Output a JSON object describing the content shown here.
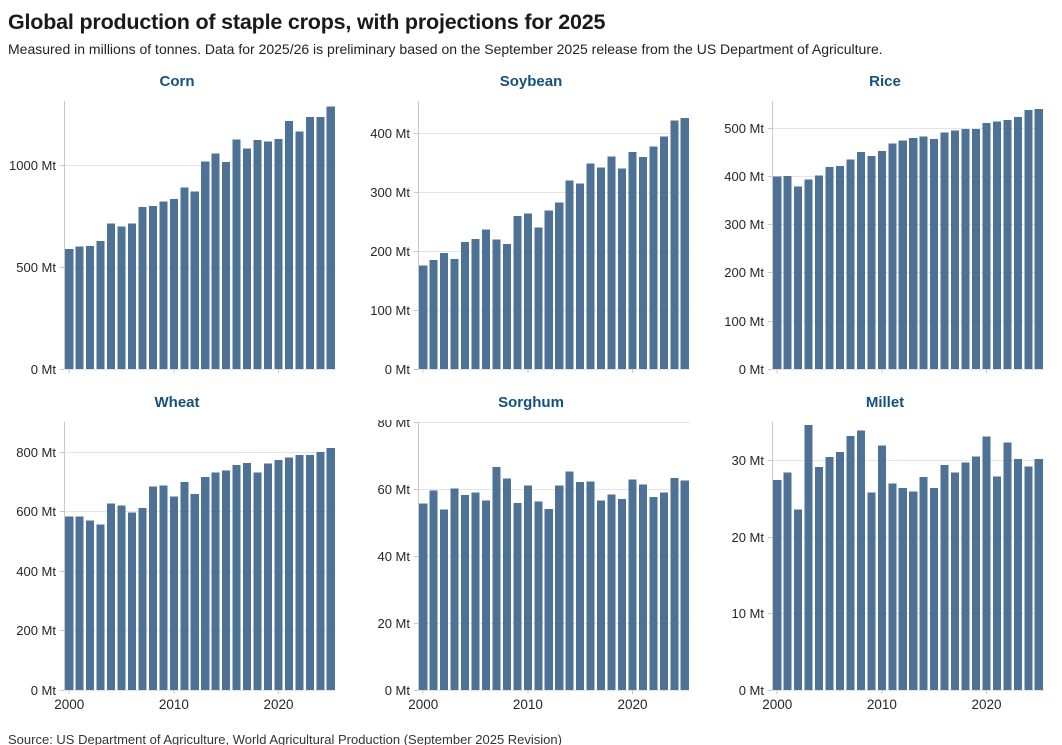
{
  "header": {
    "title": "Global production of staple crops, with projections for 2025",
    "subtitle": "Measured in millions of tonnes. Data for 2025/26 is preliminary based on the September 2025 release from the US Department of Agriculture."
  },
  "footer": {
    "source": "Source: US Department of Agriculture, World Agricultural Production (September 2025 Revision)"
  },
  "colors": {
    "bar": "#4d7296",
    "subplot_title": "#15517f",
    "grid": "#e4e4e4",
    "axis": "#c9c9c9",
    "tick_text": "#262626",
    "title_text": "#1a1a1a",
    "subtitle_text": "#222222",
    "source_text": "#333333",
    "background": "#ffffff"
  },
  "chart_data": [
    {
      "type": "bar",
      "title": "Corn",
      "unit": "Mt",
      "categories": [
        2000,
        2001,
        2002,
        2003,
        2004,
        2005,
        2006,
        2007,
        2008,
        2009,
        2010,
        2011,
        2012,
        2013,
        2014,
        2015,
        2016,
        2017,
        2018,
        2019,
        2020,
        2021,
        2022,
        2023,
        2024,
        2025
      ],
      "values": [
        590,
        601,
        604,
        627,
        715,
        699,
        713,
        795,
        800,
        821,
        835,
        890,
        871,
        1018,
        1057,
        1015,
        1127,
        1082,
        1124,
        1117,
        1129,
        1218,
        1166,
        1236,
        1237,
        1287
      ],
      "ylim": [
        0,
        1315
      ],
      "y_ticks": [
        0,
        500,
        1000
      ],
      "x_ticks": [
        2000,
        2010,
        2020
      ],
      "show_x_tick_labels": false,
      "grid": true,
      "legend": "none"
    },
    {
      "type": "bar",
      "title": "Soybean",
      "unit": "Mt",
      "categories": [
        2000,
        2001,
        2002,
        2003,
        2004,
        2005,
        2006,
        2007,
        2008,
        2009,
        2010,
        2011,
        2012,
        2013,
        2014,
        2015,
        2016,
        2017,
        2018,
        2019,
        2020,
        2021,
        2022,
        2023,
        2024,
        2025
      ],
      "values": [
        176,
        185,
        197,
        187,
        216,
        221,
        237,
        220,
        212,
        260,
        264,
        240,
        269,
        283,
        320,
        315,
        349,
        342,
        361,
        340,
        368,
        360,
        378,
        395,
        422,
        426
      ],
      "ylim": [
        0,
        455
      ],
      "y_ticks": [
        0,
        100,
        200,
        300,
        400
      ],
      "x_ticks": [
        2000,
        2010,
        2020
      ],
      "show_x_tick_labels": false,
      "grid": true,
      "legend": "none"
    },
    {
      "type": "bar",
      "title": "Rice",
      "unit": "Mt",
      "categories": [
        2000,
        2001,
        2002,
        2003,
        2004,
        2005,
        2006,
        2007,
        2008,
        2009,
        2010,
        2011,
        2012,
        2013,
        2014,
        2015,
        2016,
        2017,
        2018,
        2019,
        2020,
        2021,
        2022,
        2023,
        2024,
        2025
      ],
      "values": [
        399,
        400,
        378,
        392,
        401,
        418,
        420,
        434,
        449,
        441,
        451,
        467,
        473,
        478,
        481,
        476,
        490,
        494,
        497,
        497,
        509,
        513,
        516,
        522,
        536,
        538
      ],
      "ylim": [
        0,
        555
      ],
      "y_ticks": [
        0,
        100,
        200,
        300,
        400,
        500
      ],
      "x_ticks": [
        2000,
        2010,
        2020
      ],
      "show_x_tick_labels": false,
      "grid": true,
      "legend": "none"
    },
    {
      "type": "bar",
      "title": "Wheat",
      "unit": "Mt",
      "categories": [
        2000,
        2001,
        2002,
        2003,
        2004,
        2005,
        2006,
        2007,
        2008,
        2009,
        2010,
        2011,
        2012,
        2013,
        2014,
        2015,
        2016,
        2017,
        2018,
        2019,
        2020,
        2021,
        2022,
        2023,
        2024,
        2025
      ],
      "values": [
        583,
        582,
        570,
        556,
        627,
        619,
        596,
        611,
        684,
        687,
        649,
        698,
        658,
        716,
        730,
        737,
        756,
        762,
        731,
        761,
        773,
        780,
        789,
        790,
        799,
        813
      ],
      "ylim": [
        0,
        900
      ],
      "y_ticks": [
        0,
        200,
        400,
        600,
        800
      ],
      "x_ticks": [
        2000,
        2010,
        2020
      ],
      "show_x_tick_labels": true,
      "grid": true,
      "legend": "none"
    },
    {
      "type": "bar",
      "title": "Sorghum",
      "unit": "Mt",
      "categories": [
        2000,
        2001,
        2002,
        2003,
        2004,
        2005,
        2006,
        2007,
        2008,
        2009,
        2010,
        2011,
        2012,
        2013,
        2014,
        2015,
        2016,
        2017,
        2018,
        2019,
        2020,
        2021,
        2022,
        2023,
        2024,
        2025
      ],
      "values": [
        55.6,
        59.6,
        53.9,
        60.1,
        58.2,
        59.0,
        56.6,
        66.5,
        63.2,
        55.8,
        61.1,
        56.2,
        54.1,
        61.0,
        65.2,
        62.1,
        62.2,
        56.5,
        58.4,
        57.0,
        62.8,
        61.3,
        57.6,
        58.9,
        63.3,
        62.6
      ],
      "ylim": [
        0,
        80
      ],
      "y_ticks": [
        0,
        20,
        40,
        60,
        80
      ],
      "x_ticks": [
        2000,
        2010,
        2020
      ],
      "show_x_tick_labels": true,
      "grid": true,
      "legend": "none"
    },
    {
      "type": "bar",
      "title": "Millet",
      "unit": "Mt",
      "categories": [
        2000,
        2001,
        2002,
        2003,
        2004,
        2005,
        2006,
        2007,
        2008,
        2009,
        2010,
        2011,
        2012,
        2013,
        2014,
        2015,
        2016,
        2017,
        2018,
        2019,
        2020,
        2021,
        2022,
        2023,
        2024,
        2025
      ],
      "values": [
        27.4,
        28.4,
        23.6,
        34.6,
        29.1,
        30.4,
        31.1,
        33.2,
        33.9,
        25.8,
        31.9,
        27.0,
        26.4,
        25.9,
        27.8,
        26.4,
        29.4,
        28.4,
        29.7,
        30.5,
        33.1,
        27.9,
        32.3,
        30.2,
        29.2,
        30.2
      ],
      "ylim": [
        0,
        35
      ],
      "y_ticks": [
        0,
        10,
        20,
        30
      ],
      "x_ticks": [
        2000,
        2010,
        2020
      ],
      "show_x_tick_labels": true,
      "grid": true,
      "legend": "none"
    }
  ]
}
